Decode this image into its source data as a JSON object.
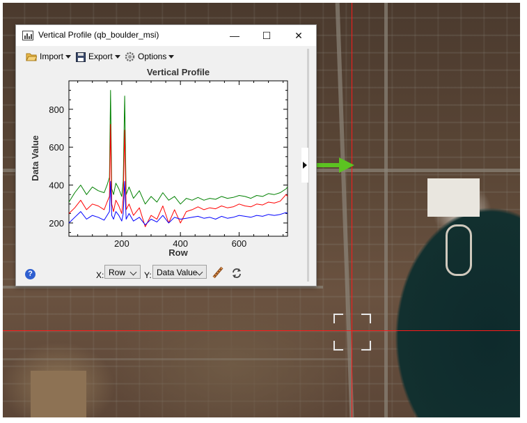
{
  "window": {
    "title": "Vertical Profile (qb_boulder_msi)",
    "minimize_glyph": "—",
    "maximize_glyph": "☐",
    "close_glyph": "✕"
  },
  "toolbar": {
    "import_label": "Import",
    "export_label": "Export",
    "options_label": "Options"
  },
  "chart_data": {
    "type": "line",
    "title": "Vertical Profile",
    "xlabel": "Row",
    "ylabel": "Data Value",
    "xlim": [
      20,
      765
    ],
    "ylim": [
      130,
      950
    ],
    "xticks": [
      200,
      400,
      600
    ],
    "yticks": [
      200,
      400,
      600,
      800
    ],
    "grid": false,
    "series": [
      {
        "color": "#008000",
        "x": [
          20,
          40,
          60,
          80,
          100,
          120,
          140,
          150,
          158,
          162,
          166,
          172,
          180,
          190,
          200,
          205,
          210,
          215,
          225,
          240,
          260,
          280,
          300,
          320,
          340,
          360,
          380,
          400,
          420,
          440,
          460,
          480,
          500,
          520,
          540,
          560,
          580,
          600,
          620,
          640,
          660,
          680,
          700,
          720,
          740,
          760,
          765
        ],
        "y": [
          310,
          360,
          400,
          350,
          390,
          370,
          360,
          400,
          440,
          900,
          380,
          350,
          410,
          380,
          340,
          420,
          870,
          350,
          390,
          330,
          370,
          300,
          340,
          310,
          360,
          320,
          340,
          300,
          330,
          320,
          335,
          320,
          330,
          325,
          340,
          330,
          335,
          345,
          340,
          330,
          345,
          340,
          355,
          350,
          360,
          380,
          390
        ]
      },
      {
        "color": "#ff0000",
        "x": [
          20,
          40,
          60,
          80,
          100,
          120,
          140,
          150,
          158,
          162,
          166,
          172,
          180,
          190,
          200,
          205,
          210,
          215,
          225,
          240,
          260,
          280,
          300,
          320,
          340,
          360,
          380,
          400,
          420,
          440,
          460,
          480,
          500,
          520,
          540,
          560,
          580,
          600,
          620,
          640,
          660,
          680,
          700,
          720,
          740,
          760,
          765
        ],
        "y": [
          250,
          280,
          320,
          270,
          300,
          290,
          270,
          310,
          340,
          720,
          300,
          260,
          320,
          290,
          250,
          330,
          690,
          270,
          300,
          240,
          280,
          180,
          240,
          220,
          290,
          200,
          270,
          200,
          260,
          270,
          285,
          270,
          280,
          275,
          290,
          280,
          285,
          300,
          290,
          285,
          300,
          295,
          310,
          305,
          315,
          350,
          340
        ]
      },
      {
        "color": "#0000ff",
        "x": [
          20,
          40,
          60,
          80,
          100,
          120,
          140,
          150,
          158,
          162,
          166,
          172,
          180,
          190,
          200,
          205,
          210,
          215,
          225,
          240,
          260,
          280,
          300,
          320,
          340,
          360,
          380,
          400,
          420,
          440,
          460,
          480,
          500,
          520,
          540,
          560,
          580,
          600,
          620,
          640,
          660,
          680,
          700,
          720,
          740,
          760,
          765
        ],
        "y": [
          200,
          230,
          260,
          220,
          240,
          230,
          215,
          240,
          260,
          420,
          240,
          220,
          260,
          240,
          210,
          250,
          420,
          220,
          250,
          210,
          230,
          190,
          220,
          205,
          240,
          200,
          230,
          220,
          225,
          230,
          235,
          225,
          230,
          220,
          235,
          225,
          230,
          240,
          235,
          230,
          240,
          235,
          245,
          240,
          245,
          255,
          250
        ]
      }
    ]
  },
  "bottom": {
    "help_glyph": "?",
    "x_label": "X:",
    "x_value": "Row",
    "y_label": "Y:",
    "y_value": "Data Value"
  }
}
